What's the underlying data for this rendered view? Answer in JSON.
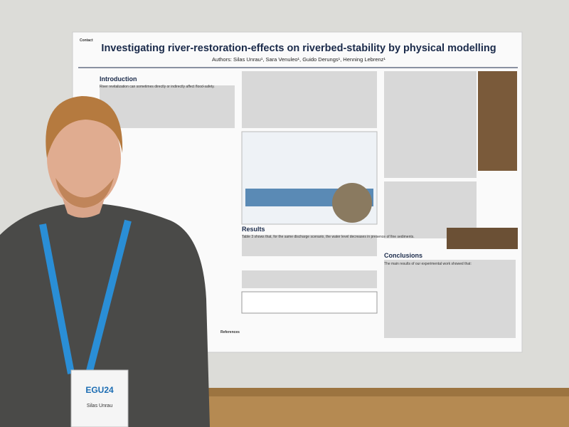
{
  "poster": {
    "contact": "Contact",
    "title": "Investigating river-restoration-effects on riverbed-stability by physical modelling",
    "authors": "Authors: Silas Unrau¹, Sara Venuleo¹, Guido Derungs¹, Henning Lebrenz¹",
    "sections": [
      {
        "heading": "Introduction",
        "lead": "River revitalization can sometimes directly or indirectly affect flood-safety."
      },
      {
        "heading": "Results",
        "lead": "Table 3 shows that, for the same discharge scenario, the water level decreases in presence of fine sediments."
      },
      {
        "heading": "Conclusions",
        "lead": "The main results of our experimental work showed that:"
      }
    ],
    "references": "References"
  },
  "badge": {
    "event": "EGU24",
    "name": "Silas Unrau"
  }
}
